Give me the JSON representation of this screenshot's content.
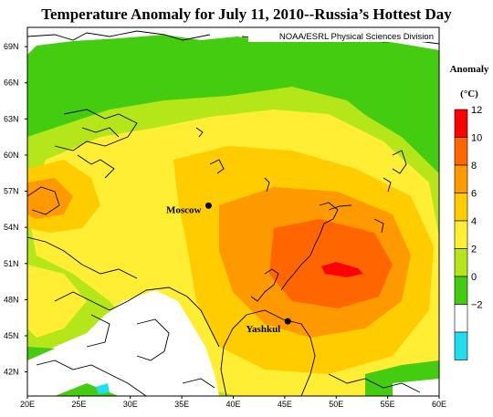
{
  "title": "Temperature Anomaly for July 11, 2010--Russia’s Hottest Day",
  "credit": "NOAA/ESRL Physical Sciences Division",
  "latitude_labels": [
    "69N",
    "66N",
    "63N",
    "60N",
    "57N",
    "54N",
    "51N",
    "48N",
    "45N",
    "42N"
  ],
  "longitude_labels": [
    "20E",
    "25E",
    "30E",
    "35E",
    "40E",
    "45E",
    "50E",
    "55E",
    "60E"
  ],
  "cities": [
    {
      "name": "Moscow",
      "lon": 37.6,
      "lat": 55.8
    },
    {
      "name": "Yashkul",
      "lon": 45.3,
      "lat": 46.2
    }
  ],
  "legend": {
    "title_line1": "Anomaly",
    "title_line2": "(°C)",
    "ticks": [
      "12",
      "10",
      "8",
      "6",
      "4",
      "2",
      "0",
      "−2"
    ],
    "colors": [
      "#ff0000",
      "#ff6600",
      "#ff9900",
      "#ffcc00",
      "#ffee33",
      "#b4e619",
      "#44cc11",
      "#ffffff",
      "#22ddee"
    ]
  },
  "colors": {
    "land_outline": "#000000",
    "low_anomaly": "#ffffff",
    "mid_anomaly": "#ffee33",
    "high_anomaly": "#ff0000"
  }
}
